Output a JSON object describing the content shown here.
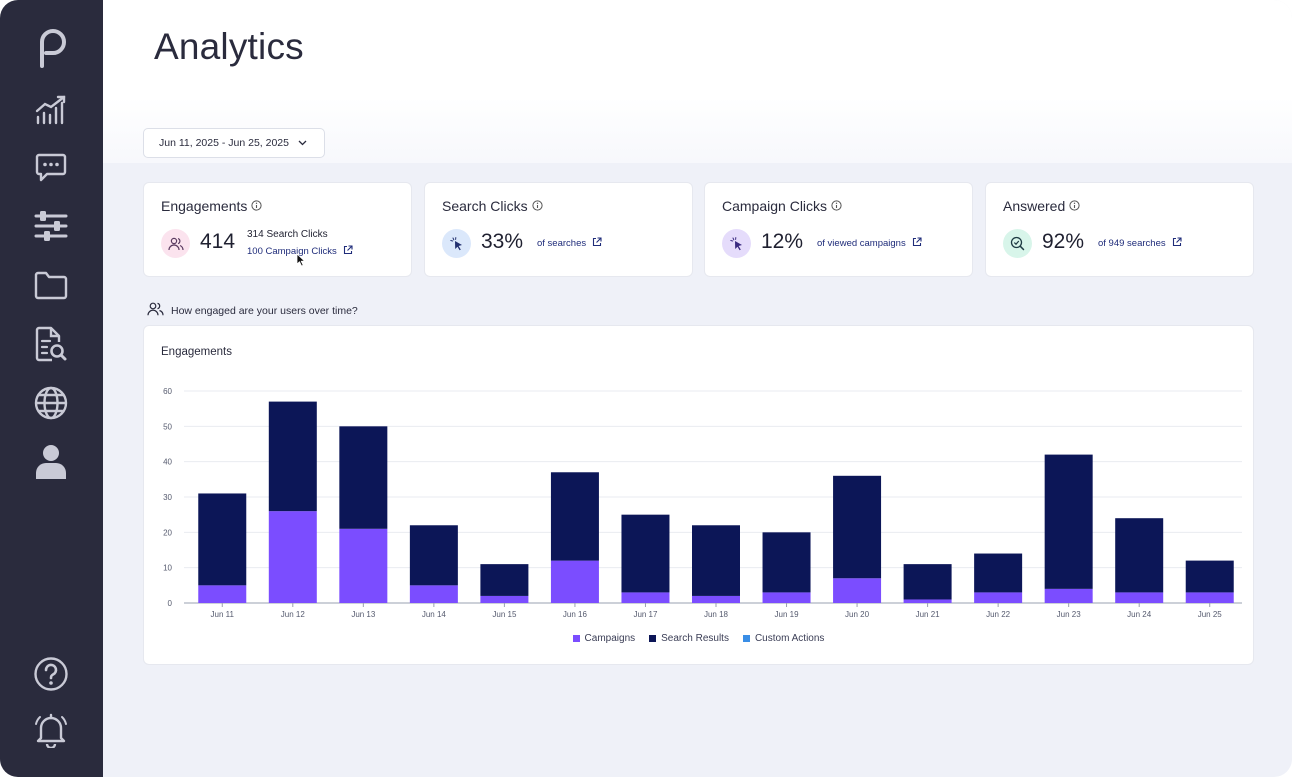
{
  "page": {
    "title": "Analytics"
  },
  "sidebar": {
    "items": [
      {
        "icon": "logo-p-icon"
      },
      {
        "icon": "analytics-chart-icon"
      },
      {
        "icon": "chat-bubble-icon"
      },
      {
        "icon": "sliders-icon"
      },
      {
        "icon": "folder-icon"
      },
      {
        "icon": "document-search-icon"
      },
      {
        "icon": "globe-icon"
      },
      {
        "icon": "user-icon"
      },
      {
        "icon": "help-icon"
      },
      {
        "icon": "bell-icon"
      }
    ]
  },
  "filters": {
    "date_range": "Jun 11, 2025 - Jun 25, 2025"
  },
  "cards": {
    "engagements": {
      "title": "Engagements",
      "value": "414",
      "line1": "314 Search Clicks",
      "line2": "100 Campaign Clicks",
      "icon": "users-icon",
      "icon_bg": "#fbe3ee"
    },
    "search_clicks": {
      "title": "Search Clicks",
      "value": "33%",
      "sub": "of searches",
      "icon": "pointer-click-icon",
      "icon_bg": "#dbe8fb"
    },
    "campaign_clicks": {
      "title": "Campaign Clicks",
      "value": "12%",
      "sub": "of viewed campaigns",
      "icon": "pointer-click-icon",
      "icon_bg": "#e5dcfb"
    },
    "answered": {
      "title": "Answered",
      "value": "92%",
      "sub": "of 949 searches",
      "icon": "search-check-icon",
      "icon_bg": "#d8f5ea"
    }
  },
  "chart_section": {
    "caption": "How engaged are your users over time?"
  },
  "chart_data": {
    "type": "bar",
    "stacked": true,
    "title": "Engagements",
    "categories": [
      "Jun 11",
      "Jun 12",
      "Jun 13",
      "Jun 14",
      "Jun 15",
      "Jun 16",
      "Jun 17",
      "Jun 18",
      "Jun 19",
      "Jun 20",
      "Jun 21",
      "Jun 22",
      "Jun 23",
      "Jun 24",
      "Jun 25"
    ],
    "series": [
      {
        "name": "Campaigns",
        "color": "#7b4dff",
        "values": [
          5,
          26,
          21,
          5,
          2,
          12,
          3,
          2,
          3,
          7,
          1,
          3,
          4,
          3,
          3
        ]
      },
      {
        "name": "Search Results",
        "color": "#0c1657",
        "values": [
          26,
          31,
          29,
          17,
          9,
          25,
          22,
          20,
          17,
          29,
          10,
          11,
          38,
          21,
          9
        ]
      },
      {
        "name": "Custom Actions",
        "color": "#3a8ee6",
        "values": [
          0,
          0,
          0,
          0,
          0,
          0,
          0,
          0,
          0,
          0,
          0,
          0,
          0,
          0,
          0
        ]
      }
    ],
    "yticks": [
      "0",
      "10",
      "20",
      "30",
      "40",
      "50",
      "60"
    ],
    "ylim": [
      0,
      60
    ],
    "grid": true,
    "legend_position": "bottom"
  }
}
